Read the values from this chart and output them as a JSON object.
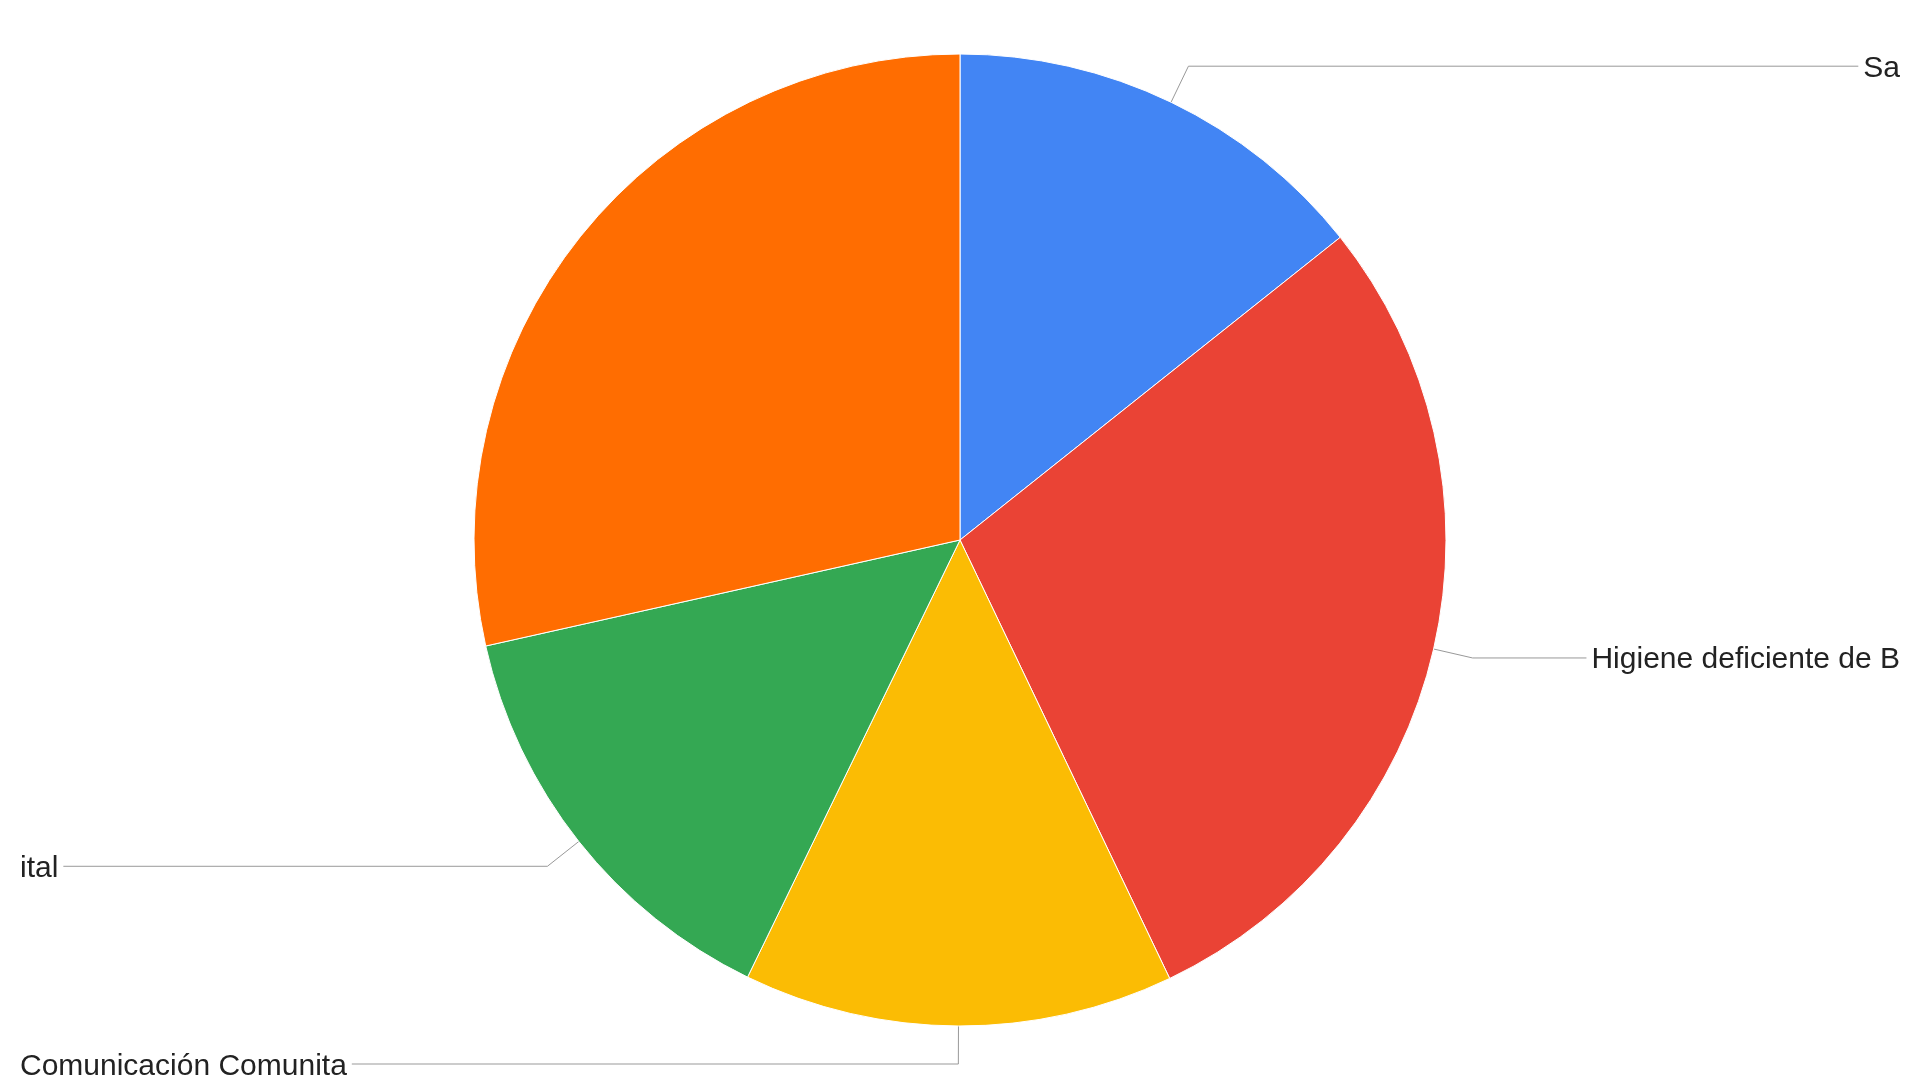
{
  "chart_data": {
    "type": "pie",
    "categories": [
      "Sa",
      "Higiene deficiente de B",
      "Comunicación Comunita",
      "ital",
      null
    ],
    "values": [
      14.3,
      28.6,
      14.3,
      14.3,
      28.5
    ],
    "colors": [
      "#4285f4",
      "#ea4335",
      "#fbbc04",
      "#34a853",
      "#ff6d01"
    ],
    "legend": false
  }
}
